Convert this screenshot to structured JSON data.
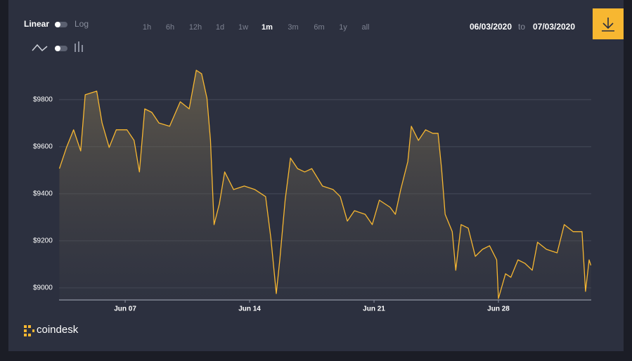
{
  "ui": {
    "scale_linear": "Linear",
    "scale_log": "Log",
    "ranges": [
      "1h",
      "6h",
      "12h",
      "1d",
      "1w",
      "1m",
      "3m",
      "6m",
      "1y",
      "all"
    ],
    "date_from": "06/03/2020",
    "date_sep": "to",
    "date_to": "07/03/2020",
    "brand": "coindesk"
  },
  "chart_data": {
    "type": "area",
    "x": [
      3.3,
      3.7,
      4.1,
      4.5,
      4.75,
      5.4,
      5.7,
      6.1,
      6.5,
      7.1,
      7.5,
      7.8,
      8.1,
      8.5,
      8.9,
      9.5,
      10.1,
      10.6,
      11.0,
      11.3,
      11.6,
      11.8,
      12.0,
      12.3,
      12.6,
      13.1,
      13.7,
      14.3,
      14.9,
      15.2,
      15.5,
      15.7,
      16.0,
      16.3,
      16.7,
      17.1,
      17.5,
      18.1,
      18.7,
      19.1,
      19.5,
      19.9,
      20.5,
      20.9,
      21.3,
      21.9,
      22.2,
      22.5,
      22.9,
      23.1,
      23.5,
      23.9,
      24.3,
      24.6,
      24.8,
      25.0,
      25.4,
      25.6,
      25.9,
      26.3,
      26.7,
      27.1,
      27.5,
      27.9,
      28.0,
      28.4,
      28.7,
      29.1,
      29.5,
      29.9,
      30.2,
      30.7,
      31.3,
      31.7,
      32.2,
      32.7,
      32.9,
      33.1,
      33.2
    ],
    "series": [
      {
        "color": "#f7b731",
        "values": [
          9507,
          9597,
          9672,
          9582,
          9821,
          9836,
          9701,
          9597,
          9672,
          9672,
          9627,
          9493,
          9761,
          9746,
          9701,
          9687,
          9791,
          9761,
          9925,
          9910,
          9806,
          9627,
          9269,
          9358,
          9493,
          9418,
          9433,
          9418,
          9388,
          9209,
          8976,
          9119,
          9373,
          9552,
          9507,
          9493,
          9507,
          9433,
          9418,
          9388,
          9284,
          9328,
          9313,
          9269,
          9373,
          9343,
          9313,
          9418,
          9537,
          9687,
          9627,
          9672,
          9657,
          9657,
          9507,
          9313,
          9239,
          9075,
          9269,
          9254,
          9134,
          9164,
          9179,
          9119,
          8955,
          9060,
          9045,
          9119,
          9104,
          9075,
          9194,
          9164,
          9149,
          9269,
          9239,
          9239,
          8985,
          9119,
          9096
        ]
      }
    ],
    "xlim": [
      3.28,
      33.22
    ],
    "xticks": [
      {
        "value": 7,
        "label": "Jun 07"
      },
      {
        "value": 14,
        "label": "Jun 14"
      },
      {
        "value": 21,
        "label": "Jun 21"
      },
      {
        "value": 28,
        "label": "Jun 28"
      }
    ],
    "ylim": [
      8949,
      9940
    ],
    "yticks": [
      {
        "value": 9000,
        "label": "$9000"
      },
      {
        "value": 9200,
        "label": "$9200"
      },
      {
        "value": 9400,
        "label": "$9400"
      },
      {
        "value": 9600,
        "label": "$9600"
      },
      {
        "value": 9800,
        "label": "$9800"
      }
    ],
    "grid": true
  }
}
